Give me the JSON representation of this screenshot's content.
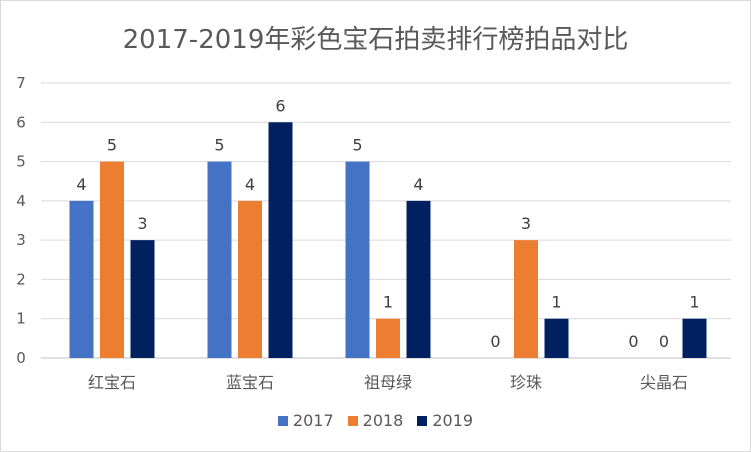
{
  "chart_data": {
    "type": "bar",
    "title": "2017-2019年彩色宝石拍卖排行榜拍品对比",
    "categories": [
      "红宝石",
      "蓝宝石",
      "祖母绿",
      "珍珠",
      "尖晶石"
    ],
    "series": [
      {
        "name": "2017",
        "color": "#4472C4",
        "values": [
          4,
          5,
          5,
          0,
          0
        ]
      },
      {
        "name": "2018",
        "color": "#ED7D31",
        "values": [
          5,
          4,
          1,
          3,
          0
        ]
      },
      {
        "name": "2019",
        "color": "#002060",
        "values": [
          3,
          6,
          4,
          1,
          1
        ]
      }
    ],
    "ylim": [
      0,
      7
    ],
    "yticks": [
      0,
      1,
      2,
      3,
      4,
      5,
      6,
      7
    ],
    "grid": true,
    "legend": "bottom",
    "data_labels": true
  }
}
